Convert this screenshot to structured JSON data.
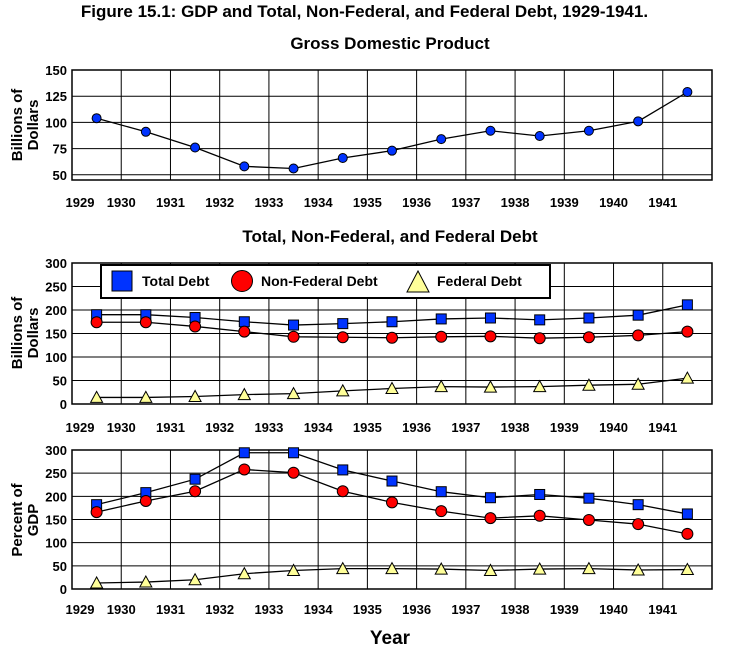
{
  "figure_title": "Figure 15.1: GDP and Total, Non-Federal, and Federal Debt, 1929-1941.",
  "x_axis_title": "Year",
  "legend": {
    "total": "Total Debt",
    "nonfederal": "Non-Federal Debt",
    "federal": "Federal Debt"
  },
  "colors": {
    "total": "#0033ff",
    "nonfederal": "#ff0000",
    "federal": "#ffff99",
    "grid": "#000000"
  },
  "chart_data": [
    {
      "type": "line",
      "title": "Gross Domestic Product",
      "ylabel": [
        "Billions of",
        "Dollars"
      ],
      "x": [
        1929,
        1930,
        1931,
        1932,
        1933,
        1934,
        1935,
        1936,
        1937,
        1938,
        1939,
        1940,
        1941
      ],
      "x_tick_labels": [
        "1929",
        "1930",
        "1931",
        "1932",
        "1933",
        "1934",
        "1935",
        "1936",
        "1937",
        "1938",
        "1939",
        "1940",
        "1941"
      ],
      "ylim": [
        45,
        150
      ],
      "y_ticks": [
        50,
        75,
        100,
        125,
        150
      ],
      "grid": true,
      "series": [
        {
          "key": "gdp",
          "marker": "circle",
          "color": "#0033ff",
          "values": [
            104,
            91,
            76,
            58,
            56,
            66,
            73,
            84,
            92,
            87,
            92,
            101,
            129
          ]
        }
      ]
    },
    {
      "type": "line",
      "title": "Total, Non-Federal, and Federal Debt",
      "ylabel": [
        "Billions of",
        "Dollars"
      ],
      "x": [
        1929,
        1930,
        1931,
        1932,
        1933,
        1934,
        1935,
        1936,
        1937,
        1938,
        1939,
        1940,
        1941
      ],
      "x_tick_labels": [
        "1929",
        "1930",
        "1931",
        "1932",
        "1933",
        "1934",
        "1935",
        "1936",
        "1937",
        "1938",
        "1939",
        "1940",
        "1941"
      ],
      "ylim": [
        0,
        300
      ],
      "y_ticks": [
        0,
        50,
        100,
        150,
        200,
        250,
        300
      ],
      "grid": true,
      "legend_position": "top-left",
      "series": [
        {
          "key": "total",
          "name": "Total Debt",
          "marker": "square",
          "color": "#0033ff",
          "values": [
            190,
            190,
            184,
            175,
            168,
            171,
            175,
            181,
            183,
            179,
            183,
            189,
            211
          ]
        },
        {
          "key": "nonfederal",
          "name": "Non-Federal Debt",
          "marker": "circle",
          "color": "#ff0000",
          "values": [
            174,
            174,
            165,
            154,
            143,
            142,
            141,
            143,
            144,
            140,
            142,
            146,
            154
          ]
        },
        {
          "key": "federal",
          "name": "Federal Debt",
          "marker": "triangle",
          "color": "#ffff99",
          "values": [
            14,
            14,
            16,
            20,
            22,
            28,
            33,
            37,
            36,
            37,
            40,
            42,
            55
          ]
        }
      ]
    },
    {
      "type": "line",
      "title": "",
      "ylabel": [
        "Percent of",
        "GDP"
      ],
      "x": [
        1929,
        1930,
        1931,
        1932,
        1933,
        1934,
        1935,
        1936,
        1937,
        1938,
        1939,
        1940,
        1941
      ],
      "x_tick_labels": [
        "1929",
        "1930",
        "1931",
        "1932",
        "1933",
        "1934",
        "1935",
        "1936",
        "1937",
        "1938",
        "1939",
        "1940",
        "1941"
      ],
      "ylim": [
        0,
        300
      ],
      "y_ticks": [
        0,
        50,
        100,
        150,
        200,
        250,
        300
      ],
      "grid": true,
      "series": [
        {
          "key": "total",
          "marker": "square",
          "color": "#0033ff",
          "values": [
            182,
            208,
            237,
            294,
            294,
            257,
            233,
            210,
            197,
            204,
            196,
            182,
            162
          ]
        },
        {
          "key": "nonfederal",
          "marker": "circle",
          "color": "#ff0000",
          "values": [
            166,
            190,
            211,
            258,
            251,
            211,
            187,
            168,
            153,
            158,
            149,
            140,
            119
          ]
        },
        {
          "key": "federal",
          "marker": "triangle",
          "color": "#ffff99",
          "values": [
            13,
            15,
            20,
            33,
            40,
            44,
            44,
            43,
            40,
            43,
            44,
            41,
            42
          ]
        }
      ]
    }
  ]
}
